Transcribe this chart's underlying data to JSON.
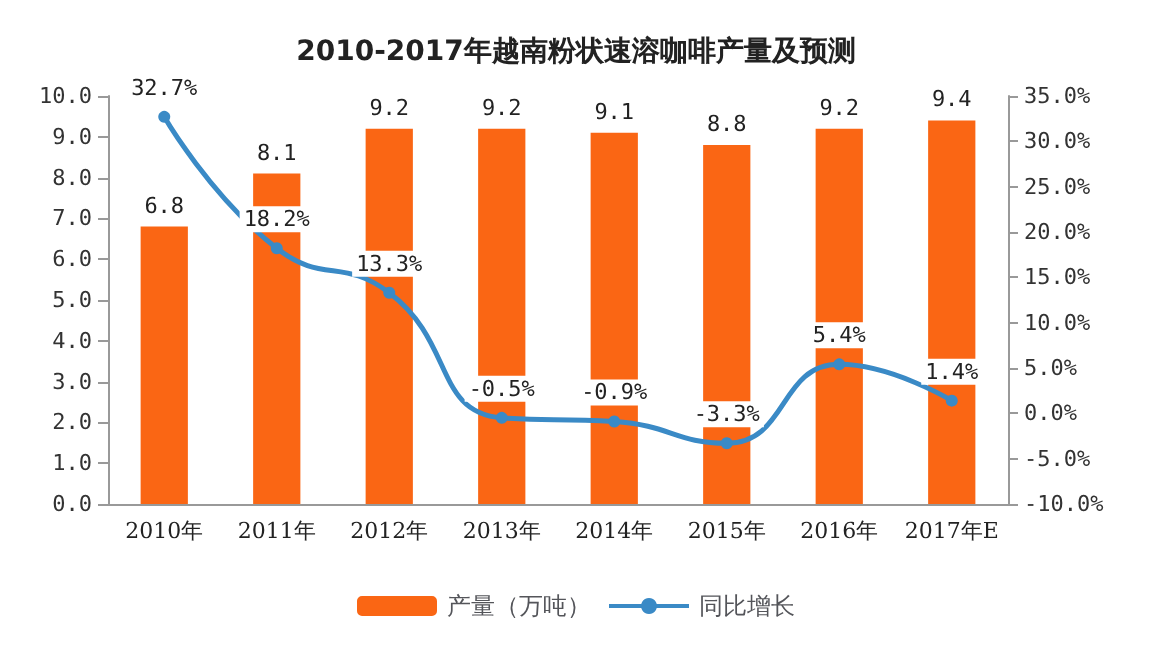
{
  "chart_data": {
    "type": "bar",
    "title": "2010-2017年越南粉状速溶咖啡产量及预测",
    "categories": [
      "2010年",
      "2011年",
      "2012年",
      "2013年",
      "2014年",
      "2015年",
      "2016年",
      "2017年E"
    ],
    "series": [
      {
        "name": "产量（万吨）",
        "color": "#fa6614",
        "values": [
          6.8,
          8.1,
          9.2,
          9.2,
          9.1,
          8.8,
          9.2,
          9.4
        ],
        "value_labels": [
          "6.8",
          "8.1",
          "9.2",
          "9.2",
          "9.1",
          "8.8",
          "9.2",
          "9.4"
        ]
      },
      {
        "name": "同比增长",
        "type": "line",
        "axis": "y2",
        "color": "#3a8ac6",
        "marker": "circle",
        "values": [
          32.7,
          18.2,
          13.3,
          -0.5,
          -0.9,
          -3.3,
          5.4,
          1.4
        ],
        "value_labels": [
          "32.7%",
          "18.2%",
          "13.3%",
          "-0.5%",
          "-0.9%",
          "-3.3%",
          "5.4%",
          "1.4%"
        ]
      }
    ],
    "ylim": [
      0,
      10
    ],
    "yticks": [
      {
        "value": 0,
        "label": "0.0"
      },
      {
        "value": 1,
        "label": "1.0"
      },
      {
        "value": 2,
        "label": "2.0"
      },
      {
        "value": 3,
        "label": "3.0"
      },
      {
        "value": 4,
        "label": "4.0"
      },
      {
        "value": 5,
        "label": "5.0"
      },
      {
        "value": 6,
        "label": "6.0"
      },
      {
        "value": 7,
        "label": "7.0"
      },
      {
        "value": 8,
        "label": "8.0"
      },
      {
        "value": 9,
        "label": "9.0"
      },
      {
        "value": 10,
        "label": "10.0"
      }
    ],
    "y2lim": [
      -10,
      35
    ],
    "y2ticks": [
      {
        "value": -10,
        "label": "-10.0%"
      },
      {
        "value": -5,
        "label": "-5.0%"
      },
      {
        "value": 0,
        "label": "0.0%"
      },
      {
        "value": 5,
        "label": "5.0%"
      },
      {
        "value": 10,
        "label": "10.0%"
      },
      {
        "value": 15,
        "label": "15.0%"
      },
      {
        "value": 20,
        "label": "20.0%"
      },
      {
        "value": 25,
        "label": "25.0%"
      },
      {
        "value": 30,
        "label": "30.0%"
      },
      {
        "value": 35,
        "label": "35.0%"
      }
    ],
    "legend": "bottom",
    "grid": false
  }
}
